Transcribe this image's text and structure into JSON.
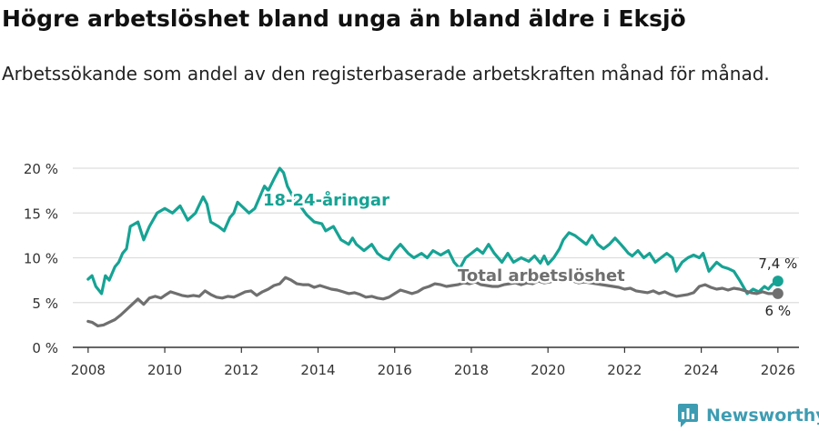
{
  "title": "Högre arbetslöshet bland unga än bland äldre i Eksjö",
  "subtitle": "Arbetssökande som andel av den registerbaserade arbetskraften månad för månad.",
  "brand": {
    "name": "Newsworthy",
    "icon": "bar-chart-icon"
  },
  "colors": {
    "youth": "#16a394",
    "total": "#6f6f6f",
    "grid": "#dddddd",
    "axis": "#333333"
  },
  "chart_data": {
    "type": "line",
    "xlabel": "",
    "ylabel": "",
    "xlim": [
      2007.6,
      2026.55
    ],
    "ylim": [
      0,
      20
    ],
    "x_ticks": [
      2008,
      2010,
      2012,
      2014,
      2016,
      2018,
      2020,
      2022,
      2024,
      2026
    ],
    "x_tick_labels": [
      "2008",
      "2010",
      "2012",
      "2014",
      "2016",
      "2018",
      "2020",
      "2022",
      "2024",
      "2026"
    ],
    "y_ticks": [
      0,
      5,
      10,
      15,
      20
    ],
    "y_tick_labels": [
      "0 %",
      "5 %",
      "10 %",
      "15 %",
      "20 %"
    ],
    "grid": true,
    "series": [
      {
        "name": "18-24-åringar",
        "color_key": "youth",
        "end_label": "7,4 %",
        "points": [
          [
            2008.0,
            7.6
          ],
          [
            2008.1,
            8.0
          ],
          [
            2008.2,
            6.8
          ],
          [
            2008.35,
            6.0
          ],
          [
            2008.45,
            8.0
          ],
          [
            2008.55,
            7.5
          ],
          [
            2008.7,
            9.0
          ],
          [
            2008.8,
            9.5
          ],
          [
            2008.9,
            10.5
          ],
          [
            2009.0,
            11.0
          ],
          [
            2009.1,
            13.5
          ],
          [
            2009.3,
            14.0
          ],
          [
            2009.45,
            12.0
          ],
          [
            2009.6,
            13.5
          ],
          [
            2009.8,
            15.0
          ],
          [
            2010.0,
            15.5
          ],
          [
            2010.2,
            15.0
          ],
          [
            2010.4,
            15.8
          ],
          [
            2010.6,
            14.2
          ],
          [
            2010.8,
            15.0
          ],
          [
            2011.0,
            16.8
          ],
          [
            2011.1,
            16.0
          ],
          [
            2011.2,
            14.0
          ],
          [
            2011.4,
            13.5
          ],
          [
            2011.55,
            13.0
          ],
          [
            2011.7,
            14.5
          ],
          [
            2011.8,
            15.0
          ],
          [
            2011.9,
            16.2
          ],
          [
            2012.0,
            15.8
          ],
          [
            2012.2,
            15.0
          ],
          [
            2012.35,
            15.5
          ],
          [
            2012.5,
            17.0
          ],
          [
            2012.6,
            18.0
          ],
          [
            2012.7,
            17.5
          ],
          [
            2012.85,
            18.8
          ],
          [
            2013.0,
            20.0
          ],
          [
            2013.1,
            19.5
          ],
          [
            2013.2,
            18.0
          ],
          [
            2013.35,
            16.8
          ],
          [
            2013.5,
            16.0
          ],
          [
            2013.7,
            14.8
          ],
          [
            2013.9,
            14.0
          ],
          [
            2014.1,
            13.8
          ],
          [
            2014.2,
            13.0
          ],
          [
            2014.4,
            13.5
          ],
          [
            2014.6,
            12.0
          ],
          [
            2014.8,
            11.5
          ],
          [
            2014.9,
            12.2
          ],
          [
            2015.0,
            11.5
          ],
          [
            2015.2,
            10.8
          ],
          [
            2015.4,
            11.5
          ],
          [
            2015.55,
            10.5
          ],
          [
            2015.7,
            10.0
          ],
          [
            2015.85,
            9.8
          ],
          [
            2016.0,
            10.8
          ],
          [
            2016.15,
            11.5
          ],
          [
            2016.35,
            10.5
          ],
          [
            2016.5,
            10.0
          ],
          [
            2016.7,
            10.5
          ],
          [
            2016.85,
            10.0
          ],
          [
            2017.0,
            10.8
          ],
          [
            2017.2,
            10.3
          ],
          [
            2017.4,
            10.8
          ],
          [
            2017.55,
            9.5
          ],
          [
            2017.7,
            8.8
          ],
          [
            2017.85,
            10.0
          ],
          [
            2018.0,
            10.5
          ],
          [
            2018.15,
            11.0
          ],
          [
            2018.3,
            10.5
          ],
          [
            2018.45,
            11.5
          ],
          [
            2018.6,
            10.5
          ],
          [
            2018.8,
            9.5
          ],
          [
            2018.95,
            10.5
          ],
          [
            2019.1,
            9.5
          ],
          [
            2019.3,
            10.0
          ],
          [
            2019.5,
            9.6
          ],
          [
            2019.65,
            10.2
          ],
          [
            2019.8,
            9.4
          ],
          [
            2019.9,
            10.2
          ],
          [
            2020.0,
            9.3
          ],
          [
            2020.15,
            10.0
          ],
          [
            2020.3,
            11.0
          ],
          [
            2020.4,
            12.0
          ],
          [
            2020.55,
            12.8
          ],
          [
            2020.7,
            12.5
          ],
          [
            2020.85,
            12.0
          ],
          [
            2021.0,
            11.5
          ],
          [
            2021.15,
            12.5
          ],
          [
            2021.3,
            11.5
          ],
          [
            2021.45,
            11.0
          ],
          [
            2021.6,
            11.5
          ],
          [
            2021.75,
            12.2
          ],
          [
            2021.9,
            11.5
          ],
          [
            2022.0,
            11.0
          ],
          [
            2022.1,
            10.5
          ],
          [
            2022.2,
            10.2
          ],
          [
            2022.35,
            10.8
          ],
          [
            2022.5,
            10.0
          ],
          [
            2022.65,
            10.5
          ],
          [
            2022.8,
            9.5
          ],
          [
            2022.95,
            10.0
          ],
          [
            2023.1,
            10.5
          ],
          [
            2023.25,
            10.0
          ],
          [
            2023.35,
            8.5
          ],
          [
            2023.5,
            9.5
          ],
          [
            2023.65,
            10.0
          ],
          [
            2023.8,
            10.3
          ],
          [
            2023.95,
            10.0
          ],
          [
            2024.05,
            10.5
          ],
          [
            2024.2,
            8.5
          ],
          [
            2024.4,
            9.5
          ],
          [
            2024.55,
            9.0
          ],
          [
            2024.7,
            8.8
          ],
          [
            2024.85,
            8.5
          ],
          [
            2025.0,
            7.5
          ],
          [
            2025.2,
            6.0
          ],
          [
            2025.35,
            6.5
          ],
          [
            2025.5,
            6.2
          ],
          [
            2025.65,
            6.8
          ],
          [
            2025.75,
            6.5
          ],
          [
            2025.85,
            7.0
          ],
          [
            2026.0,
            7.4
          ]
        ]
      },
      {
        "name": "Total arbetslöshet",
        "color_key": "total",
        "end_label": "6 %",
        "points": [
          [
            2008.0,
            2.9
          ],
          [
            2008.1,
            2.8
          ],
          [
            2008.25,
            2.4
          ],
          [
            2008.4,
            2.5
          ],
          [
            2008.55,
            2.8
          ],
          [
            2008.7,
            3.1
          ],
          [
            2008.85,
            3.6
          ],
          [
            2009.0,
            4.2
          ],
          [
            2009.15,
            4.8
          ],
          [
            2009.3,
            5.4
          ],
          [
            2009.45,
            4.8
          ],
          [
            2009.6,
            5.5
          ],
          [
            2009.75,
            5.7
          ],
          [
            2009.9,
            5.5
          ],
          [
            2010.0,
            5.8
          ],
          [
            2010.15,
            6.2
          ],
          [
            2010.3,
            6.0
          ],
          [
            2010.45,
            5.8
          ],
          [
            2010.6,
            5.7
          ],
          [
            2010.75,
            5.8
          ],
          [
            2010.9,
            5.7
          ],
          [
            2011.05,
            6.3
          ],
          [
            2011.2,
            5.9
          ],
          [
            2011.35,
            5.6
          ],
          [
            2011.5,
            5.5
          ],
          [
            2011.65,
            5.7
          ],
          [
            2011.8,
            5.6
          ],
          [
            2011.95,
            5.9
          ],
          [
            2012.1,
            6.2
          ],
          [
            2012.25,
            6.3
          ],
          [
            2012.4,
            5.8
          ],
          [
            2012.55,
            6.2
          ],
          [
            2012.7,
            6.5
          ],
          [
            2012.85,
            6.9
          ],
          [
            2013.0,
            7.1
          ],
          [
            2013.15,
            7.8
          ],
          [
            2013.3,
            7.5
          ],
          [
            2013.45,
            7.1
          ],
          [
            2013.6,
            7.0
          ],
          [
            2013.75,
            7.0
          ],
          [
            2013.9,
            6.7
          ],
          [
            2014.05,
            6.9
          ],
          [
            2014.2,
            6.7
          ],
          [
            2014.35,
            6.5
          ],
          [
            2014.5,
            6.4
          ],
          [
            2014.65,
            6.2
          ],
          [
            2014.8,
            6.0
          ],
          [
            2014.95,
            6.1
          ],
          [
            2015.1,
            5.9
          ],
          [
            2015.25,
            5.6
          ],
          [
            2015.4,
            5.7
          ],
          [
            2015.55,
            5.5
          ],
          [
            2015.7,
            5.4
          ],
          [
            2015.85,
            5.6
          ],
          [
            2016.0,
            6.0
          ],
          [
            2016.15,
            6.4
          ],
          [
            2016.3,
            6.2
          ],
          [
            2016.45,
            6.0
          ],
          [
            2016.6,
            6.2
          ],
          [
            2016.75,
            6.6
          ],
          [
            2016.9,
            6.8
          ],
          [
            2017.05,
            7.1
          ],
          [
            2017.2,
            7.0
          ],
          [
            2017.35,
            6.8
          ],
          [
            2017.5,
            6.9
          ],
          [
            2017.65,
            7.0
          ],
          [
            2017.8,
            7.2
          ],
          [
            2017.95,
            7.1
          ],
          [
            2018.1,
            7.3
          ],
          [
            2018.25,
            7.0
          ],
          [
            2018.4,
            6.9
          ],
          [
            2018.55,
            6.8
          ],
          [
            2018.7,
            6.8
          ],
          [
            2018.85,
            7.0
          ],
          [
            2019.0,
            7.1
          ],
          [
            2019.15,
            7.2
          ],
          [
            2019.3,
            7.0
          ],
          [
            2019.45,
            7.2
          ],
          [
            2019.6,
            7.1
          ],
          [
            2019.75,
            7.4
          ],
          [
            2019.9,
            7.2
          ],
          [
            2020.05,
            7.3
          ],
          [
            2020.2,
            7.5
          ],
          [
            2020.35,
            7.3
          ],
          [
            2020.5,
            7.6
          ],
          [
            2020.65,
            7.4
          ],
          [
            2020.8,
            7.2
          ],
          [
            2020.95,
            7.3
          ],
          [
            2021.1,
            7.2
          ],
          [
            2021.25,
            7.1
          ],
          [
            2021.4,
            7.0
          ],
          [
            2021.55,
            6.9
          ],
          [
            2021.7,
            6.8
          ],
          [
            2021.85,
            6.7
          ],
          [
            2022.0,
            6.5
          ],
          [
            2022.15,
            6.6
          ],
          [
            2022.3,
            6.3
          ],
          [
            2022.45,
            6.2
          ],
          [
            2022.6,
            6.1
          ],
          [
            2022.75,
            6.3
          ],
          [
            2022.9,
            6.0
          ],
          [
            2023.05,
            6.2
          ],
          [
            2023.2,
            5.9
          ],
          [
            2023.35,
            5.7
          ],
          [
            2023.5,
            5.8
          ],
          [
            2023.65,
            5.9
          ],
          [
            2023.8,
            6.1
          ],
          [
            2023.95,
            6.8
          ],
          [
            2024.1,
            7.0
          ],
          [
            2024.25,
            6.7
          ],
          [
            2024.4,
            6.5
          ],
          [
            2024.55,
            6.6
          ],
          [
            2024.7,
            6.4
          ],
          [
            2024.85,
            6.6
          ],
          [
            2025.0,
            6.5
          ],
          [
            2025.15,
            6.3
          ],
          [
            2025.3,
            6.1
          ],
          [
            2025.45,
            6.0
          ],
          [
            2025.6,
            6.2
          ],
          [
            2025.75,
            6.0
          ],
          [
            2026.0,
            6.0
          ]
        ]
      }
    ]
  }
}
